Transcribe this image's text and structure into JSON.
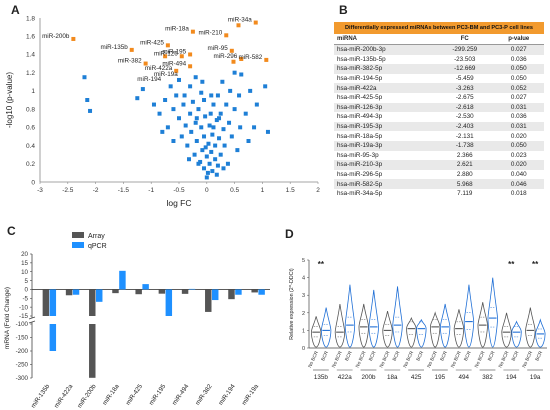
{
  "panels": {
    "a": "A",
    "b": "B",
    "c": "C",
    "d": "D"
  },
  "colors": {
    "orange": "#f28a1d",
    "blue": "#1e7fd6",
    "dark": "#555555",
    "gray": "#888888",
    "bar_blue": "#1e90ff",
    "violin_blue": "#1f6fd6",
    "violin_gray": "#555555"
  },
  "chart_data": [
    {
      "type": "scatter",
      "panel": "A",
      "xlabel": "log FC",
      "ylabel": "-log10 (p-value)",
      "xlim": [
        -3,
        2
      ],
      "ylim": [
        0,
        1.8
      ],
      "xticks": [
        "-3",
        "-2.5",
        "-2",
        "-1.5",
        "-1",
        "-0.5",
        "0",
        "0.5",
        "1",
        "1.5",
        "2"
      ],
      "yticks": [
        "0",
        "0.2",
        "0.4",
        "0.6",
        "0.8",
        "1",
        "1.2",
        "1.4",
        "1.6",
        "1.8"
      ],
      "series": [
        {
          "name": "significant",
          "color": "#f28a1d",
          "points": [
            [
              -2.4,
              1.57
            ],
            [
              -1.35,
              1.45
            ],
            [
              -1.1,
              1.3
            ],
            [
              -0.75,
              1.38
            ],
            [
              -0.7,
              1.5
            ],
            [
              -0.45,
              1.38
            ],
            [
              -0.3,
              1.4
            ],
            [
              -0.3,
              1.27
            ],
            [
              -0.25,
              1.65
            ],
            [
              -0.55,
              1.22
            ],
            [
              0.35,
              1.61
            ],
            [
              0.45,
              1.44
            ],
            [
              0.57,
              1.72
            ],
            [
              0.88,
              1.75
            ],
            [
              0.62,
              1.35
            ],
            [
              0.48,
              1.32
            ],
            [
              1.07,
              1.34
            ]
          ]
        },
        {
          "name": "non-significant",
          "color": "#1e7fd6",
          "points": [
            [
              -2.2,
              1.15
            ],
            [
              -2.15,
              0.9
            ],
            [
              -2.1,
              0.78
            ],
            [
              -1.25,
              0.92
            ],
            [
              -1.15,
              1.02
            ],
            [
              -0.95,
              0.85
            ],
            [
              -0.85,
              0.75
            ],
            [
              -0.75,
              0.9
            ],
            [
              -0.7,
              0.6
            ],
            [
              -0.65,
              1.05
            ],
            [
              -0.6,
              0.8
            ],
            [
              -0.55,
              0.95
            ],
            [
              -0.5,
              0.7
            ],
            [
              -0.5,
              1.12
            ],
            [
              -0.45,
              0.5
            ],
            [
              -0.42,
              0.85
            ],
            [
              -0.4,
              0.95
            ],
            [
              -0.38,
              0.62
            ],
            [
              -0.35,
              0.4
            ],
            [
              -0.3,
              0.75
            ],
            [
              -0.3,
              1.05
            ],
            [
              -0.28,
              0.55
            ],
            [
              -0.25,
              0.88
            ],
            [
              -0.22,
              0.3
            ],
            [
              -0.2,
              0.65
            ],
            [
              -0.2,
              1.15
            ],
            [
              -0.18,
              0.45
            ],
            [
              -0.15,
              0.8
            ],
            [
              -0.12,
              0.22
            ],
            [
              -0.1,
              0.6
            ],
            [
              -0.1,
              0.98
            ],
            [
              -0.08,
              0.35
            ],
            [
              -0.05,
              0.15
            ],
            [
              -0.05,
              0.5
            ],
            [
              -0.03,
              0.72
            ],
            [
              0,
              0.05
            ],
            [
              0,
              0.28
            ],
            [
              0.02,
              0.1
            ],
            [
              0.03,
              0.42
            ],
            [
              0.05,
              0.62
            ],
            [
              0.05,
              0.2
            ],
            [
              0.08,
              0.33
            ],
            [
              0.1,
              0.12
            ],
            [
              0.1,
              0.52
            ],
            [
              0.12,
              0.85
            ],
            [
              0.15,
              0.25
            ],
            [
              0.15,
              0.4
            ],
            [
              0.18,
              0.68
            ],
            [
              0.2,
              0.18
            ],
            [
              0.2,
              0.95
            ],
            [
              0.22,
              0.48
            ],
            [
              0.25,
              0.3
            ],
            [
              0.25,
              0.75
            ],
            [
              0.28,
              1.1
            ],
            [
              0.3,
              0.58
            ],
            [
              0.32,
              0.4
            ],
            [
              0.35,
              0.85
            ],
            [
              0.38,
              0.2
            ],
            [
              0.4,
              0.65
            ],
            [
              0.42,
              1.0
            ],
            [
              0.45,
              0.5
            ],
            [
              0.5,
              0.8
            ],
            [
              0.5,
              1.2
            ],
            [
              0.55,
              0.35
            ],
            [
              0.58,
              0.95
            ],
            [
              0.6,
              0.6
            ],
            [
              0.62,
              1.18
            ],
            [
              0.7,
              0.75
            ],
            [
              0.75,
              0.45
            ],
            [
              0.78,
              1.0
            ],
            [
              0.85,
              0.6
            ],
            [
              0.9,
              0.85
            ],
            [
              1.05,
              1.05
            ],
            [
              1.1,
              0.55
            ],
            [
              -0.6,
              0.45
            ],
            [
              -0.8,
              0.55
            ],
            [
              -0.05,
              0.9
            ],
            [
              0.07,
              0.75
            ],
            [
              -0.15,
              0.2
            ],
            [
              0.18,
              0.08
            ],
            [
              -0.02,
              0.38
            ],
            [
              0.12,
              0.6
            ],
            [
              -0.32,
              0.25
            ],
            [
              0.3,
              0.15
            ],
            [
              -0.18,
              0.7
            ],
            [
              0.22,
              0.7
            ],
            [
              0.08,
              0.95
            ],
            [
              -0.08,
              1.1
            ]
          ]
        }
      ],
      "labels": [
        {
          "text": "miR-200b",
          "x": -2.4,
          "y": 1.57
        },
        {
          "text": "miR-135b",
          "x": -1.35,
          "y": 1.45
        },
        {
          "text": "miR-382",
          "x": -1.1,
          "y": 1.3
        },
        {
          "text": "miR-425",
          "x": -0.7,
          "y": 1.5
        },
        {
          "text": "miR-18a",
          "x": -0.25,
          "y": 1.65
        },
        {
          "text": "miR-126",
          "x": -0.45,
          "y": 1.38
        },
        {
          "text": "miR-195",
          "x": -0.3,
          "y": 1.4
        },
        {
          "text": "miR-494",
          "x": -0.3,
          "y": 1.27
        },
        {
          "text": "miR-422a",
          "x": -0.55,
          "y": 1.22
        },
        {
          "text": "miR-194",
          "x": -0.75,
          "y": 1.1
        },
        {
          "text": "miR-19a",
          "x": -0.45,
          "y": 1.15
        },
        {
          "text": "miR-210",
          "x": 0.35,
          "y": 1.61
        },
        {
          "text": "miR-34a",
          "x": 0.88,
          "y": 1.75
        },
        {
          "text": "miR-95",
          "x": 0.45,
          "y": 1.44
        },
        {
          "text": "miR-296",
          "x": 0.62,
          "y": 1.35
        },
        {
          "text": "miR-582",
          "x": 1.07,
          "y": 1.34
        }
      ]
    },
    {
      "type": "table",
      "panel": "B",
      "title": "Differentially expressed miRNAs between PC3-BM and PC3-P cell lines",
      "columns": [
        "miRNA",
        "FC",
        "p-value"
      ],
      "rows": [
        [
          "hsa-miR-200b-3p",
          "-299.259",
          "0.027"
        ],
        [
          "hsa-miR-135b-5p",
          "-23.503",
          "0.036"
        ],
        [
          "hsa-miR-382-5p",
          "-12.669",
          "0.050"
        ],
        [
          "hsa-miR-194-5p",
          "-5.459",
          "0.050"
        ],
        [
          "hsa-miR-422a",
          "-3.263",
          "0.052"
        ],
        [
          "hsa-miR-425-5p",
          "-2.675",
          "0.027"
        ],
        [
          "hsa-miR-126-3p",
          "-2.618",
          "0.031"
        ],
        [
          "hsa-miR-494-3p",
          "-2.530",
          "0.036"
        ],
        [
          "hsa-miR-195-3p",
          "-2.403",
          "0.031"
        ],
        [
          "hsa-miR-18a-5p",
          "-2.131",
          "0.020"
        ],
        [
          "hsa-miR-19a-3p",
          "-1.738",
          "0.050"
        ],
        [
          "hsa-miR-95-3p",
          "2.366",
          "0.023"
        ],
        [
          "hsa-miR-210-3p",
          "2.621",
          "0.020"
        ],
        [
          "hsa-miR-296-5p",
          "2.880",
          "0.040"
        ],
        [
          "hsa-miR-582-5p",
          "5.968",
          "0.046"
        ],
        [
          "hsa-miR-34a-5p",
          "7.119",
          "0.018"
        ]
      ]
    },
    {
      "type": "bar",
      "panel": "C",
      "ylabel": "mRNA (Fold Change)",
      "yticks": [
        "20",
        "15",
        "10",
        "5",
        "0",
        "-5",
        "-10",
        "-15",
        "-100",
        "-150",
        "-200",
        "-250",
        "-300"
      ],
      "categories": [
        "miR-135b",
        "miR-422a",
        "miR-200b",
        "miR-18a",
        "miR-425",
        "miR-195",
        "miR-494",
        "miR-382",
        "miR-194",
        "miR-19a"
      ],
      "series": [
        {
          "name": "Array",
          "values": [
            -23.5,
            -3.3,
            -299.3,
            -2.1,
            -2.7,
            -2.4,
            -2.5,
            -12.7,
            -5.5,
            -1.7
          ]
        },
        {
          "name": "qPCR",
          "values": [
            -200,
            -3.0,
            -7.0,
            10.5,
            3.0,
            -90,
            0.3,
            -6.0,
            -3.0,
            -3.0
          ]
        }
      ],
      "legend": "top-right"
    },
    {
      "type": "violin",
      "panel": "D",
      "ylabel": "Relative expression (2^-DDCt)",
      "yticks": [
        "0",
        "1",
        "2",
        "3",
        "4",
        "5"
      ],
      "ylim": [
        0,
        5
      ],
      "groups": [
        "135b",
        "422a",
        "200b",
        "18a",
        "425",
        "195",
        "494",
        "382",
        "194",
        "19a"
      ],
      "subgroups": [
        "No BCR",
        "BCR"
      ],
      "significance": [
        {
          "group": "135b",
          "text": "**"
        },
        {
          "group": "194",
          "text": "**"
        },
        {
          "group": "19a",
          "text": "**"
        }
      ],
      "medians": [
        [
          0.9,
          1.0
        ],
        [
          0.9,
          1.3
        ],
        [
          1.2,
          1.2
        ],
        [
          1.0,
          1.3
        ],
        [
          1.1,
          1.1
        ],
        [
          1.2,
          1.2
        ],
        [
          1.1,
          1.5
        ],
        [
          1.3,
          1.7
        ],
        [
          0.9,
          0.9
        ],
        [
          1.0,
          0.8
        ]
      ],
      "spreads": [
        [
          1.8,
          2.3
        ],
        [
          2.5,
          3.6
        ],
        [
          2.5,
          3.3
        ],
        [
          2.1,
          3.5
        ],
        [
          1.7,
          1.6
        ],
        [
          2.0,
          2.5
        ],
        [
          2.2,
          3.6
        ],
        [
          2.6,
          4.0
        ],
        [
          2.0,
          1.5
        ],
        [
          2.3,
          1.6
        ]
      ]
    }
  ]
}
